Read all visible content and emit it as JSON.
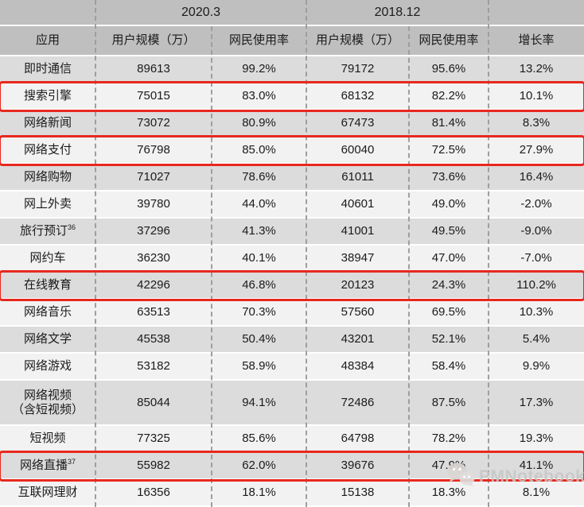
{
  "chart_data": {
    "type": "table",
    "title": "",
    "col_groups": [
      "2020.3",
      "2018.12"
    ],
    "columns": [
      "应用",
      "用户规模（万）",
      "网民使用率",
      "用户规模（万）",
      "网民使用率",
      "增长率"
    ],
    "rows": [
      {
        "app": "即时通信",
        "app_sup": "",
        "app_line2": "",
        "u2020": "89613",
        "r2020": "99.2%",
        "u2018": "79172",
        "r2018": "95.6%",
        "growth": "13.2%",
        "highlighted": false
      },
      {
        "app": "搜索引擎",
        "app_sup": "",
        "app_line2": "",
        "u2020": "75015",
        "r2020": "83.0%",
        "u2018": "68132",
        "r2018": "82.2%",
        "growth": "10.1%",
        "highlighted": true
      },
      {
        "app": "网络新闻",
        "app_sup": "",
        "app_line2": "",
        "u2020": "73072",
        "r2020": "80.9%",
        "u2018": "67473",
        "r2018": "81.4%",
        "growth": "8.3%",
        "highlighted": false
      },
      {
        "app": "网络支付",
        "app_sup": "",
        "app_line2": "",
        "u2020": "76798",
        "r2020": "85.0%",
        "u2018": "60040",
        "r2018": "72.5%",
        "growth": "27.9%",
        "highlighted": true
      },
      {
        "app": "网络购物",
        "app_sup": "",
        "app_line2": "",
        "u2020": "71027",
        "r2020": "78.6%",
        "u2018": "61011",
        "r2018": "73.6%",
        "growth": "16.4%",
        "highlighted": false
      },
      {
        "app": "网上外卖",
        "app_sup": "",
        "app_line2": "",
        "u2020": "39780",
        "r2020": "44.0%",
        "u2018": "40601",
        "r2018": "49.0%",
        "growth": "-2.0%",
        "highlighted": false
      },
      {
        "app": "旅行预订",
        "app_sup": "36",
        "app_line2": "",
        "u2020": "37296",
        "r2020": "41.3%",
        "u2018": "41001",
        "r2018": "49.5%",
        "growth": "-9.0%",
        "highlighted": false
      },
      {
        "app": "网约车",
        "app_sup": "",
        "app_line2": "",
        "u2020": "36230",
        "r2020": "40.1%",
        "u2018": "38947",
        "r2018": "47.0%",
        "growth": "-7.0%",
        "highlighted": false
      },
      {
        "app": "在线教育",
        "app_sup": "",
        "app_line2": "",
        "u2020": "42296",
        "r2020": "46.8%",
        "u2018": "20123",
        "r2018": "24.3%",
        "growth": "110.2%",
        "highlighted": true
      },
      {
        "app": "网络音乐",
        "app_sup": "",
        "app_line2": "",
        "u2020": "63513",
        "r2020": "70.3%",
        "u2018": "57560",
        "r2018": "69.5%",
        "growth": "10.3%",
        "highlighted": false
      },
      {
        "app": "网络文学",
        "app_sup": "",
        "app_line2": "",
        "u2020": "45538",
        "r2020": "50.4%",
        "u2018": "43201",
        "r2018": "52.1%",
        "growth": "5.4%",
        "highlighted": false
      },
      {
        "app": "网络游戏",
        "app_sup": "",
        "app_line2": "",
        "u2020": "53182",
        "r2020": "58.9%",
        "u2018": "48384",
        "r2018": "58.4%",
        "growth": "9.9%",
        "highlighted": false
      },
      {
        "app": "网络视频",
        "app_sup": "",
        "app_line2": "（含短视频）",
        "u2020": "85044",
        "r2020": "94.1%",
        "u2018": "72486",
        "r2018": "87.5%",
        "growth": "17.3%",
        "highlighted": false
      },
      {
        "app": "短视频",
        "app_sup": "",
        "app_line2": "",
        "u2020": "77325",
        "r2020": "85.6%",
        "u2018": "64798",
        "r2018": "78.2%",
        "growth": "19.3%",
        "highlighted": false
      },
      {
        "app": "网络直播",
        "app_sup": "37",
        "app_line2": "",
        "u2020": "55982",
        "r2020": "62.0%",
        "u2018": "39676",
        "r2018": "47.9%",
        "growth": "41.1%",
        "highlighted": true
      },
      {
        "app": "互联网理财",
        "app_sup": "",
        "app_line2": "",
        "u2020": "16356",
        "r2020": "18.1%",
        "u2018": "15138",
        "r2018": "18.3%",
        "growth": "8.1%",
        "highlighted": false
      }
    ],
    "legend": "red boxes highlight: 搜索引擎, 网络支付, 在线教育, 网络直播"
  },
  "watermark": {
    "icon": "wechat-icon",
    "label": "PMNotebook"
  },
  "colors": {
    "header_bg": "#bfbfbf",
    "row_odd_bg": "#dcdcdc",
    "row_even_bg": "#f2f2f2",
    "highlight_border": "#e8281e",
    "divider": "#9e9e9e",
    "text": "#1b1b1b",
    "watermark_text": "#c6c6c6"
  }
}
